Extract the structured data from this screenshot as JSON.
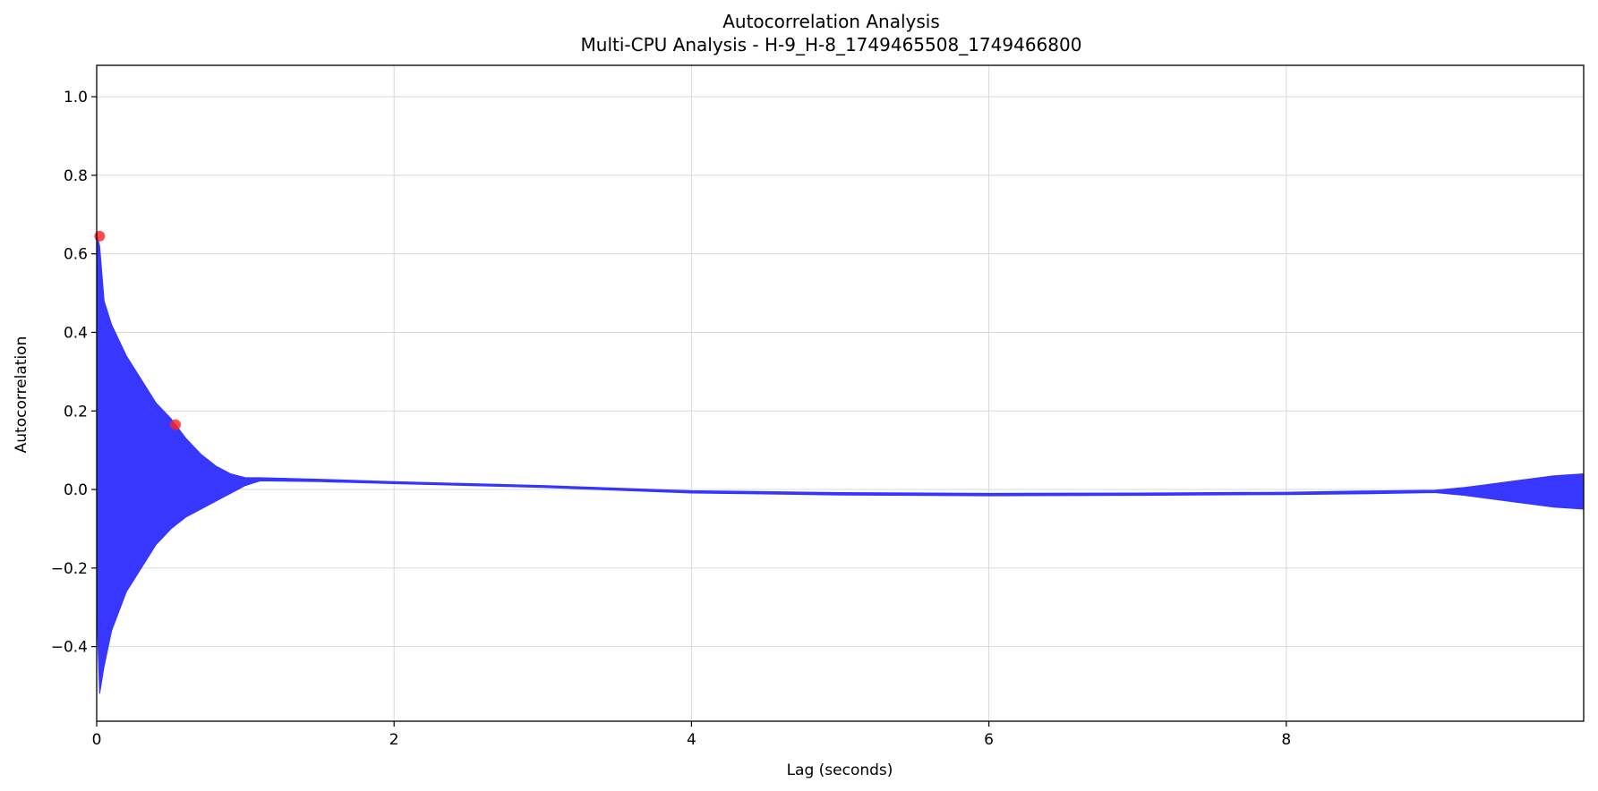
{
  "chart_data": {
    "type": "area",
    "title": "Autocorrelation Analysis",
    "subtitle": "Multi-CPU Analysis - H-9_H-8_1749465508_1749466800",
    "xlabel": "Lag (seconds)",
    "ylabel": "Autocorrelation",
    "xlim": [
      0,
      10
    ],
    "ylim": [
      -0.59,
      1.08
    ],
    "grid": true,
    "x_ticks": [
      0,
      2,
      4,
      6,
      8
    ],
    "x_tick_labels": [
      "0",
      "2",
      "4",
      "6",
      "8"
    ],
    "y_ticks": [
      -0.4,
      -0.2,
      0.0,
      0.2,
      0.4,
      0.6,
      0.8,
      1.0
    ],
    "y_tick_labels": [
      "−0.4",
      "−0.2",
      "0.0",
      "0.2",
      "0.4",
      "0.6",
      "0.8",
      "1.0"
    ],
    "series": [
      {
        "color": "#3333ff",
        "envelope": {
          "x": [
            0.0,
            0.02,
            0.05,
            0.1,
            0.2,
            0.3,
            0.4,
            0.5,
            0.6,
            0.7,
            0.8,
            0.9,
            1.0,
            1.1,
            1.5,
            2.0,
            3.0,
            4.0,
            5.0,
            6.0,
            7.0,
            8.0,
            8.5,
            9.0,
            9.2,
            9.5,
            9.8,
            10.0
          ],
          "upper": [
            0.65,
            0.62,
            0.48,
            0.42,
            0.34,
            0.28,
            0.22,
            0.18,
            0.13,
            0.09,
            0.06,
            0.04,
            0.03,
            0.03,
            0.026,
            0.02,
            0.01,
            -0.003,
            -0.008,
            -0.01,
            -0.009,
            -0.007,
            -0.004,
            -0.002,
            0.005,
            0.02,
            0.035,
            0.04
          ],
          "lower": [
            -0.3,
            -0.52,
            -0.45,
            -0.36,
            -0.26,
            -0.2,
            -0.14,
            -0.1,
            -0.07,
            -0.05,
            -0.03,
            -0.01,
            0.01,
            0.022,
            0.02,
            0.015,
            0.005,
            -0.009,
            -0.014,
            -0.016,
            -0.015,
            -0.013,
            -0.011,
            -0.008,
            -0.015,
            -0.03,
            -0.045,
            -0.05
          ]
        }
      }
    ],
    "peaks": {
      "color": "#ff2020",
      "x": [
        0.02,
        0.53
      ],
      "y": [
        0.645,
        0.165
      ]
    }
  }
}
